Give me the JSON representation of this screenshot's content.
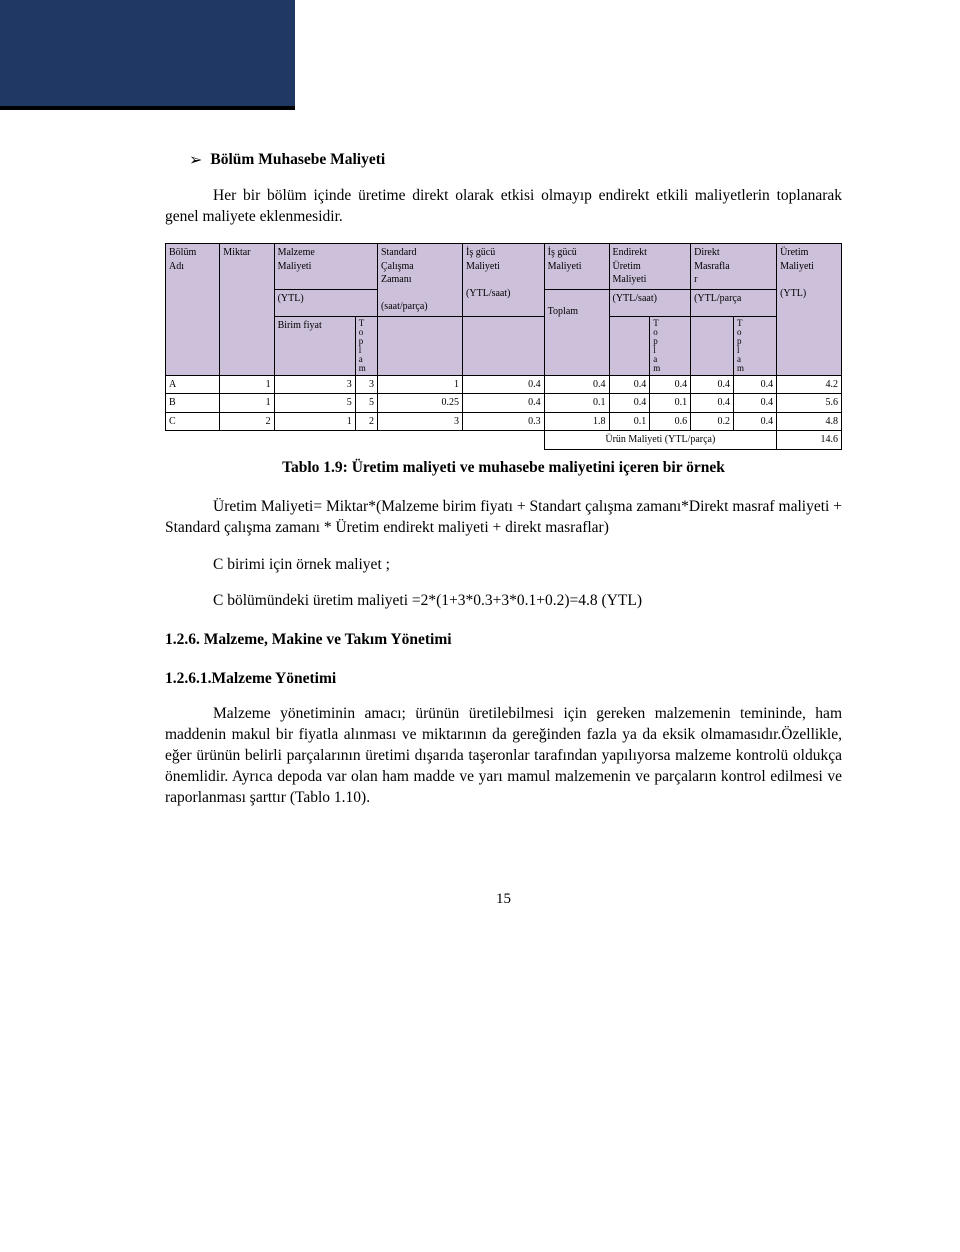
{
  "colors": {
    "band": "#1f3864",
    "band_border": "#000000",
    "table_header_bg": "#ccc0da",
    "table_border": "#000000",
    "text": "#000000",
    "background": "#ffffff"
  },
  "heading": {
    "arrow": "➢",
    "title": "Bölüm Muhasebe Maliyeti"
  },
  "intro_para": "Her bir bölüm içinde üretime direkt olarak etkisi olmayıp endirekt etkili maliyetlerin toplanarak genel maliyete eklenmesidir.",
  "table": {
    "headers": {
      "bolum_adi": {
        "l1": "Bölüm",
        "l2": "Adı"
      },
      "miktar": "Miktar",
      "malzeme": {
        "l1": "Malzeme",
        "l2": "Maliyeti",
        "unit": "(YTL)",
        "sub1": "Birim fiyat",
        "sub2": "Toplam"
      },
      "standard": {
        "l1": "Standard",
        "l2": "Çalışma",
        "l3": "Zamanı",
        "unit": "(saat/parça)"
      },
      "isgucu1": {
        "l1": "İş gücü",
        "l2": "Maliyeti",
        "unit": "(YTL/saat)"
      },
      "isgucu2": {
        "l1": "İş gücü",
        "l2": "Maliyeti",
        "sub": "Toplam"
      },
      "endirekt": {
        "l1": "Endirekt",
        "l2": "Üretim",
        "l3": "Maliyeti",
        "unit": "(YTL/saat)",
        "sub2": "Toplam"
      },
      "direkt": {
        "l1": "Direkt",
        "l2": "Masrafla",
        "l3": "r",
        "unit": "(YTL/parça",
        "sub2": "Toplam"
      },
      "uretim": {
        "l1": "Üretim",
        "l2": "Maliyeti",
        "unit": "(YTL)"
      }
    },
    "vtext": "T\no\np\nl\na\nm",
    "rows": [
      {
        "name": "A",
        "miktar": "1",
        "birim": "3",
        "mtop": "3",
        "std": "1",
        "ig1": "0.4",
        "ig2": "0.4",
        "end1": "0.4",
        "end2": "0.4",
        "dir1": "0.4",
        "dir2": "0.4",
        "ure": "4.2"
      },
      {
        "name": "B",
        "miktar": "1",
        "birim": "5",
        "mtop": "5",
        "std": "0.25",
        "ig1": "0.4",
        "ig2": "0.1",
        "end1": "0.4",
        "end2": "0.1",
        "dir1": "0.4",
        "dir2": "0.4",
        "ure": "5.6"
      },
      {
        "name": "C",
        "miktar": "2",
        "birim": "1",
        "mtop": "2",
        "std": "3",
        "ig1": "0.3",
        "ig2": "1.8",
        "end1": "0.1",
        "end2": "0.6",
        "dir1": "0.2",
        "dir2": "0.4",
        "ure": "4.8"
      }
    ],
    "footer": {
      "label": "Ürün Maliyeti (YTL/parça)",
      "value": "14.6"
    }
  },
  "caption": "Tablo 1.9: Üretim maliyeti ve muhasebe maliyetini içeren bir örnek",
  "para_formula": "Üretim Maliyeti= Miktar*(Malzeme birim fiyatı + Standart çalışma zamanı*Direkt masraf maliyeti + Standard çalışma zamanı * Üretim endirekt maliyeti + direkt masraflar)",
  "line_c1": "C birimi için örnek maliyet ;",
  "line_c2": "C bölümündeki üretim maliyeti =2*(1+3*0.3+3*0.1+0.2)=4.8 (YTL)",
  "section_126": "1.2.6. Malzeme, Makine ve Takım Yönetimi",
  "section_1261": "1.2.6.1.Malzeme Yönetimi",
  "para_malzeme": "Malzeme yönetiminin amacı; ürünün üretilebilmesi için gereken malzemenin temininde, ham maddenin makul bir fiyatla alınması ve miktarının da gereğinden fazla ya da eksik olmamasıdır.Özellikle, eğer ürünün belirli parçalarının üretimi dışarıda taşeronlar tarafından yapılıyorsa malzeme kontrolü oldukça önemlidir. Ayrıca depoda var olan ham madde ve yarı mamul malzemenin ve parçaların kontrol edilmesi ve raporlanması şarttır (Tablo 1.10).",
  "page_number": "15"
}
